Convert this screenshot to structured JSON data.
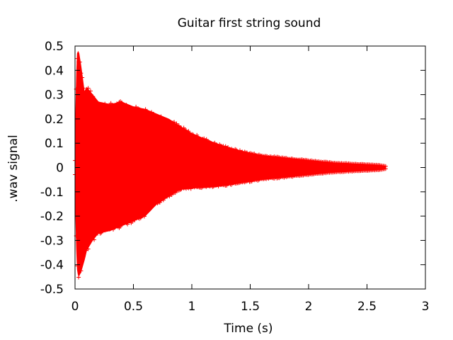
{
  "chart_data": {
    "type": "scatter",
    "title": "Guitar first string sound",
    "xlabel": "Time (s)",
    "ylabel": ".wav signal",
    "xlim": [
      0,
      3
    ],
    "ylim": [
      -0.5,
      0.5
    ],
    "x_ticks": [
      0,
      0.5,
      1,
      1.5,
      2,
      2.5,
      3
    ],
    "x_tick_labels": [
      "0",
      "0.5",
      "1",
      "1.5",
      "2",
      "2.5",
      "3"
    ],
    "y_ticks": [
      0.5,
      0.4,
      0.3,
      0.2,
      0.1,
      0,
      -0.1,
      -0.2,
      -0.3,
      -0.4,
      -0.5
    ],
    "y_tick_labels": [
      "0.5",
      "0.4",
      "0.3",
      "0.2",
      "0.1",
      "0",
      "-0.1",
      "-0.2",
      "-0.3",
      "-0.4",
      "-0.5"
    ],
    "grid": false,
    "marker": "plus",
    "series": [
      {
        "color": "#ff0000",
        "envelope": {
          "t": [
            0.0,
            0.01,
            0.02,
            0.03,
            0.05,
            0.08,
            0.1,
            0.15,
            0.2,
            0.3,
            0.4,
            0.5,
            0.6,
            0.7,
            0.8,
            0.9,
            1.0,
            1.2,
            1.4,
            1.6,
            1.8,
            2.0,
            2.2,
            2.4,
            2.6,
            2.66
          ],
          "upper": [
            0.03,
            0.35,
            0.47,
            0.48,
            0.42,
            0.31,
            0.33,
            0.3,
            0.27,
            0.26,
            0.27,
            0.25,
            0.24,
            0.22,
            0.2,
            0.17,
            0.14,
            0.1,
            0.07,
            0.05,
            0.04,
            0.03,
            0.02,
            0.015,
            0.01,
            0.005
          ],
          "lower": [
            -0.03,
            -0.3,
            -0.42,
            -0.45,
            -0.43,
            -0.38,
            -0.34,
            -0.3,
            -0.27,
            -0.26,
            -0.24,
            -0.22,
            -0.2,
            -0.15,
            -0.12,
            -0.09,
            -0.085,
            -0.08,
            -0.065,
            -0.05,
            -0.04,
            -0.03,
            -0.02,
            -0.015,
            -0.01,
            -0.005
          ]
        }
      }
    ]
  }
}
